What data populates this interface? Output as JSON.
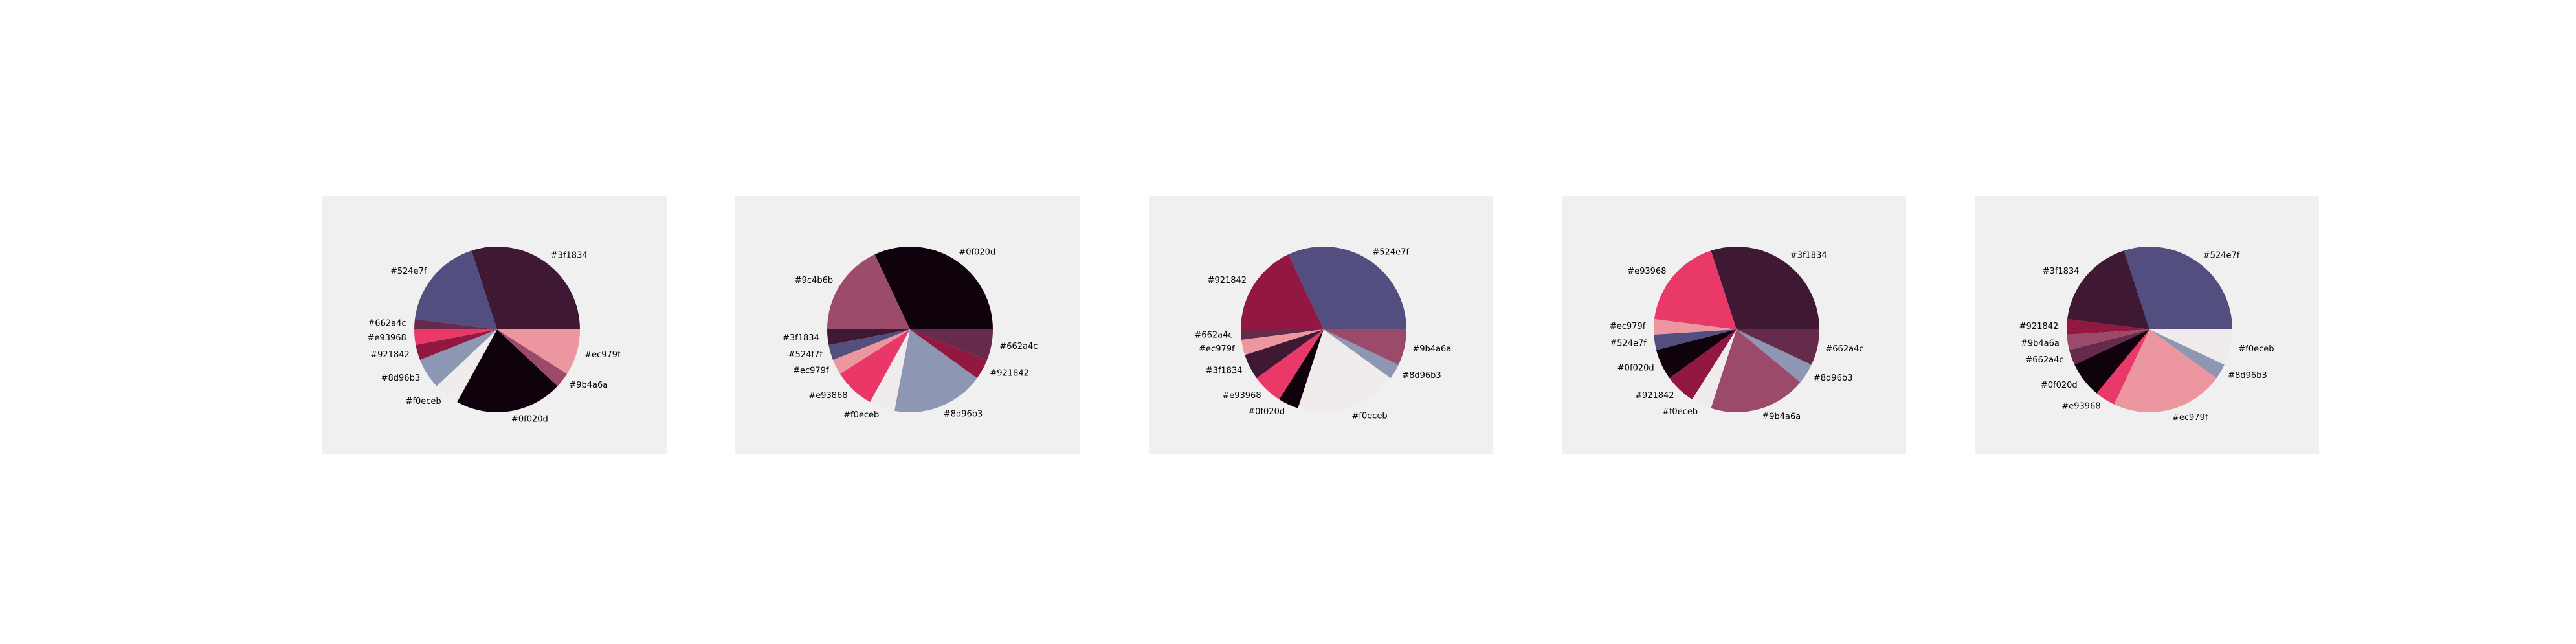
{
  "chart_data": [
    {
      "type": "pie",
      "slices": [
        {
          "label": "#3f1834",
          "value": 30,
          "color": "#3f1834"
        },
        {
          "label": "#524e7f",
          "value": 18,
          "color": "#524e7f"
        },
        {
          "label": "#662a4c",
          "value": 2,
          "color": "#662a4c"
        },
        {
          "label": "#e93968",
          "value": 3,
          "color": "#e93968"
        },
        {
          "label": "#921842",
          "value": 3,
          "color": "#921842"
        },
        {
          "label": "#8d96b3",
          "value": 6,
          "color": "#8d96b3"
        },
        {
          "label": "#f0eceb",
          "value": 5,
          "color": "#f0eceb"
        },
        {
          "label": "#0f020d",
          "value": 21,
          "color": "#0f020d"
        },
        {
          "label": "#9b4a6a",
          "value": 3,
          "color": "#9b4a6a"
        },
        {
          "label": "#ec979f",
          "value": 9,
          "color": "#ec979f"
        }
      ]
    },
    {
      "type": "pie",
      "slices": [
        {
          "label": "#0f020d",
          "value": 32,
          "color": "#0f020d"
        },
        {
          "label": "#9c4b6b",
          "value": 18,
          "color": "#9c4b6b"
        },
        {
          "label": "#3f1834",
          "value": 3,
          "color": "#3f1834"
        },
        {
          "label": "#524f7f",
          "value": 3,
          "color": "#524f7f"
        },
        {
          "label": "#ec979f",
          "value": 3,
          "color": "#ec979f"
        },
        {
          "label": "#e93868",
          "value": 8,
          "color": "#e93868"
        },
        {
          "label": "#f0eceb",
          "value": 5,
          "color": "#f0eceb"
        },
        {
          "label": "#8d96b3",
          "value": 18,
          "color": "#8d96b3"
        },
        {
          "label": "#921842",
          "value": 4,
          "color": "#921842"
        },
        {
          "label": "#662a4c",
          "value": 6,
          "color": "#662a4c"
        }
      ]
    },
    {
      "type": "pie",
      "slices": [
        {
          "label": "#524e7f",
          "value": 32,
          "color": "#524e7f"
        },
        {
          "label": "#921842",
          "value": 18,
          "color": "#921842"
        },
        {
          "label": "#662a4c",
          "value": 2,
          "color": "#662a4c"
        },
        {
          "label": "#ec979f",
          "value": 3,
          "color": "#ec979f"
        },
        {
          "label": "#3f1834",
          "value": 5,
          "color": "#3f1834"
        },
        {
          "label": "#e93968",
          "value": 6,
          "color": "#e93968"
        },
        {
          "label": "#0f020d",
          "value": 4,
          "color": "#0f020d"
        },
        {
          "label": "#f0eceb",
          "value": 20,
          "color": "#f0eceb"
        },
        {
          "label": "#8d96b3",
          "value": 3,
          "color": "#8d96b3"
        },
        {
          "label": "#9b4a6a",
          "value": 7,
          "color": "#9b4a6a"
        }
      ]
    },
    {
      "type": "pie",
      "slices": [
        {
          "label": "#3f1834",
          "value": 30,
          "color": "#3f1834"
        },
        {
          "label": "#e93968",
          "value": 18,
          "color": "#e93968"
        },
        {
          "label": "#ec979f",
          "value": 3,
          "color": "#ec979f"
        },
        {
          "label": "#524e7f",
          "value": 3,
          "color": "#524e7f"
        },
        {
          "label": "#0f020d",
          "value": 6,
          "color": "#0f020d"
        },
        {
          "label": "#921842",
          "value": 6,
          "color": "#921842"
        },
        {
          "label": "#f0eceb",
          "value": 4,
          "color": "#f0eceb"
        },
        {
          "label": "#9b4a6a",
          "value": 19,
          "color": "#9b4a6a"
        },
        {
          "label": "#8d96b3",
          "value": 4,
          "color": "#8d96b3"
        },
        {
          "label": "#662a4c",
          "value": 7,
          "color": "#662a4c"
        }
      ]
    },
    {
      "type": "pie",
      "slices": [
        {
          "label": "#524e7f",
          "value": 30,
          "color": "#524e7f"
        },
        {
          "label": "#3f1834",
          "value": 18,
          "color": "#3f1834"
        },
        {
          "label": "#921842",
          "value": 3,
          "color": "#921842"
        },
        {
          "label": "#9b4a6a",
          "value": 3,
          "color": "#9b4a6a"
        },
        {
          "label": "#662a4c",
          "value": 3,
          "color": "#662a4c"
        },
        {
          "label": "#0f020d",
          "value": 7,
          "color": "#0f020d"
        },
        {
          "label": "#e93968",
          "value": 4,
          "color": "#e93968"
        },
        {
          "label": "#ec979f",
          "value": 22,
          "color": "#ec979f"
        },
        {
          "label": "#8d96b3",
          "value": 3,
          "color": "#8d96b3"
        },
        {
          "label": "#f0eceb",
          "value": 7,
          "color": "#f0eceb"
        }
      ]
    }
  ]
}
